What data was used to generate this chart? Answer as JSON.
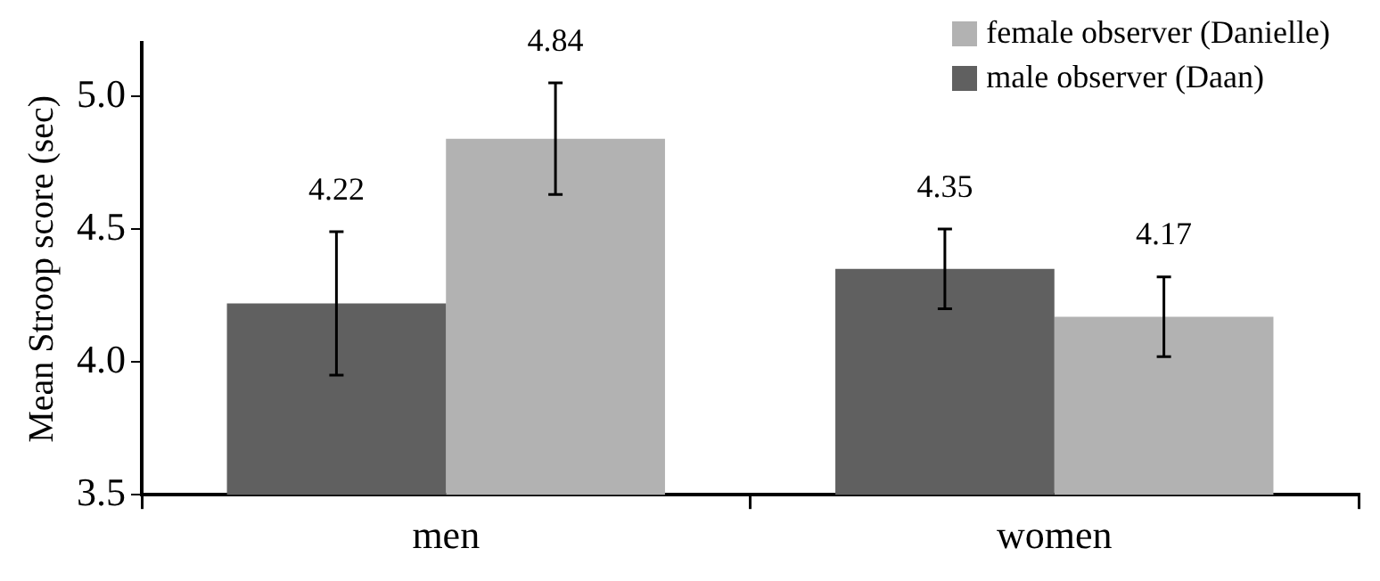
{
  "chart_data": {
    "type": "bar",
    "ylabel": "Mean Stroop score (sec)",
    "categories": [
      "men",
      "women"
    ],
    "series": [
      {
        "name": "male observer (Daan)",
        "color": "#606060",
        "values": [
          4.22,
          4.35
        ],
        "errors": [
          0.27,
          0.15
        ]
      },
      {
        "name": "female observer (Danielle)",
        "color": "#b2b2b2",
        "values": [
          4.84,
          4.17
        ],
        "errors": [
          0.21,
          0.15
        ]
      }
    ],
    "ylim": [
      3.5,
      5.2
    ],
    "yticks": [
      {
        "value": 3.5,
        "label": "3.5"
      },
      {
        "value": 4,
        "label": "4.0"
      },
      {
        "value": 4.5,
        "label": "4.5"
      },
      {
        "value": 5,
        "label": "5.0"
      }
    ],
    "data_labels": true,
    "legend": "top right",
    "grid": false
  }
}
